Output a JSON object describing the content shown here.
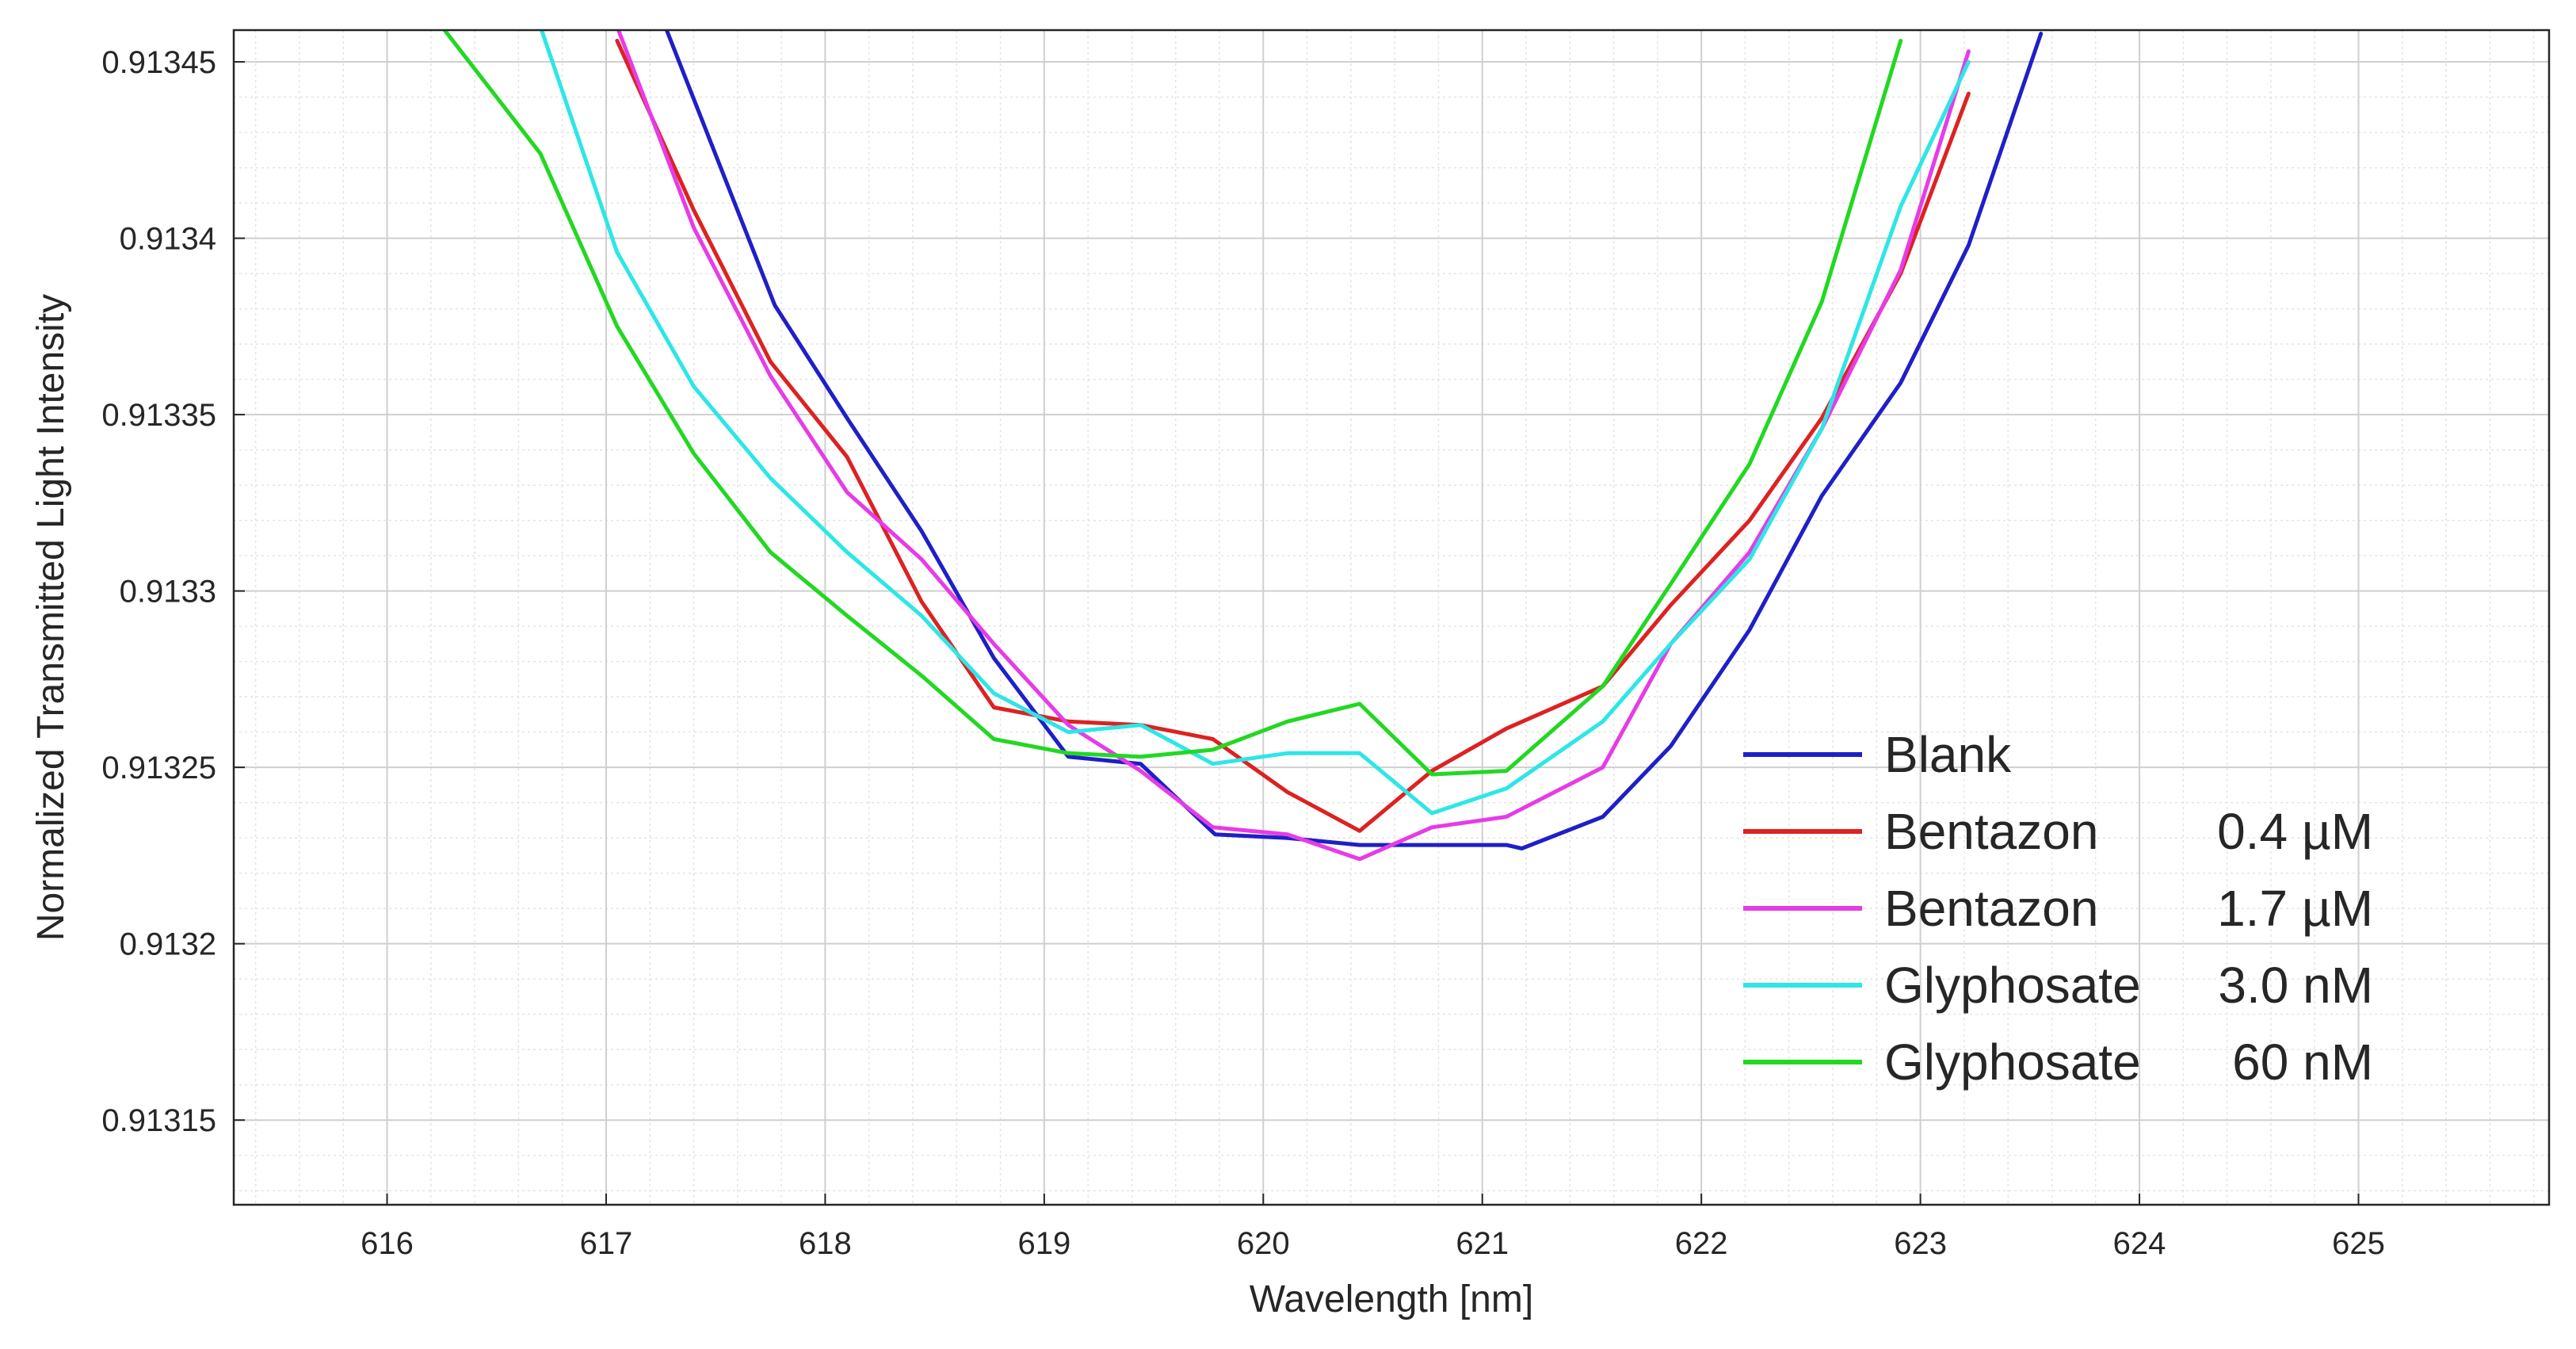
{
  "chart_data": {
    "type": "line",
    "title": "",
    "xlabel": "Wavelength [nm]",
    "ylabel": "Normalized Transmitted Light Intensity",
    "xlim": [
      615.3,
      625.87
    ],
    "ylim": [
      0.913126,
      0.913459
    ],
    "xticks": [
      616,
      617,
      618,
      619,
      620,
      621,
      622,
      623,
      624,
      625
    ],
    "xtick_labels": [
      "616",
      "617",
      "618",
      "619",
      "620",
      "621",
      "622",
      "623",
      "624",
      "625"
    ],
    "yticks": [
      0.91315,
      0.9132,
      0.91325,
      0.9133,
      0.91335,
      0.9134,
      0.91345
    ],
    "ytick_labels": [
      "0.91315",
      "0.9132",
      "0.91325",
      "0.9133",
      "0.91335",
      "0.9134",
      "0.91345"
    ],
    "grid": true,
    "minor_grid": true,
    "legend_position": "lower-right",
    "series": [
      {
        "name": "Blank",
        "legend_label": "Blank",
        "legend_value": "",
        "color": "#1f1fc8",
        "x": [
          617.27,
          617.77,
          618.1,
          618.44,
          618.77,
          619.11,
          619.44,
          619.78,
          620.11,
          620.44,
          620.77,
          621.11,
          621.18,
          621.55,
          621.86,
          622.22,
          622.55,
          622.91,
          623.22,
          623.55
        ],
        "y": [
          0.91346,
          0.913381,
          0.913349,
          0.913317,
          0.913281,
          0.913253,
          0.913251,
          0.913231,
          0.91323,
          0.913228,
          0.913228,
          0.913228,
          0.913227,
          0.913236,
          0.913256,
          0.913289,
          0.913327,
          0.913359,
          0.913398,
          0.913458
        ]
      },
      {
        "name": "Bentazon 0.4 µM",
        "legend_label": "Bentazon",
        "legend_value": "0.4 µM",
        "color": "#dc2222",
        "x": [
          617.05,
          617.4,
          617.75,
          618.1,
          618.44,
          618.77,
          619.11,
          619.44,
          619.77,
          620.11,
          620.44,
          620.77,
          621.11,
          621.55,
          621.86,
          622.22,
          622.55,
          622.91,
          623.22
        ],
        "y": [
          0.913456,
          0.913408,
          0.913365,
          0.913338,
          0.913297,
          0.913267,
          0.913263,
          0.913262,
          0.913258,
          0.913243,
          0.913232,
          0.913249,
          0.913261,
          0.913273,
          0.913296,
          0.91332,
          0.913349,
          0.91339,
          0.913441
        ]
      },
      {
        "name": "Bentazon 1.7 µM",
        "legend_label": "Bentazon",
        "legend_value": "1.7 µM",
        "color": "#e63ce6",
        "x": [
          617.05,
          617.4,
          617.75,
          618.1,
          618.44,
          618.77,
          619.11,
          619.44,
          619.77,
          620.11,
          620.44,
          620.77,
          621.11,
          621.55,
          621.86,
          622.22,
          622.55,
          622.91,
          623.22
        ],
        "y": [
          0.91346,
          0.913403,
          0.913361,
          0.913328,
          0.913309,
          0.913285,
          0.913262,
          0.913249,
          0.913233,
          0.913231,
          0.913224,
          0.913233,
          0.913236,
          0.91325,
          0.913285,
          0.913311,
          0.913346,
          0.913391,
          0.913453
        ]
      },
      {
        "name": "Glyphosate 3.0 nM",
        "legend_label": "Glyphosate",
        "legend_value": "3.0 nM",
        "color": "#2ee6e6",
        "x": [
          616.7,
          617.05,
          617.4,
          617.75,
          618.1,
          618.44,
          618.77,
          619.11,
          619.44,
          619.77,
          620.11,
          620.44,
          620.77,
          621.11,
          621.55,
          621.86,
          622.22,
          622.55,
          622.91,
          623.22
        ],
        "y": [
          0.91346,
          0.913396,
          0.913358,
          0.913332,
          0.913311,
          0.913293,
          0.913271,
          0.91326,
          0.913262,
          0.913251,
          0.913254,
          0.913254,
          0.913237,
          0.913244,
          0.913263,
          0.913285,
          0.913309,
          0.913346,
          0.913409,
          0.91345
        ]
      },
      {
        "name": "Glyphosate 60 nM",
        "legend_label": "Glyphosate",
        "legend_value": "60 nM",
        "color": "#22d822",
        "x": [
          616.25,
          616.7,
          617.05,
          617.4,
          617.75,
          618.1,
          618.44,
          618.77,
          619.11,
          619.44,
          619.77,
          620.11,
          620.44,
          620.77,
          621.11,
          621.55,
          621.86,
          622.22,
          622.55,
          622.91
        ],
        "y": [
          0.91346,
          0.913424,
          0.913375,
          0.913339,
          0.913311,
          0.913293,
          0.913276,
          0.913258,
          0.913254,
          0.913253,
          0.913255,
          0.913263,
          0.913268,
          0.913248,
          0.913249,
          0.913273,
          0.913302,
          0.913336,
          0.913382,
          0.913456
        ]
      }
    ]
  }
}
